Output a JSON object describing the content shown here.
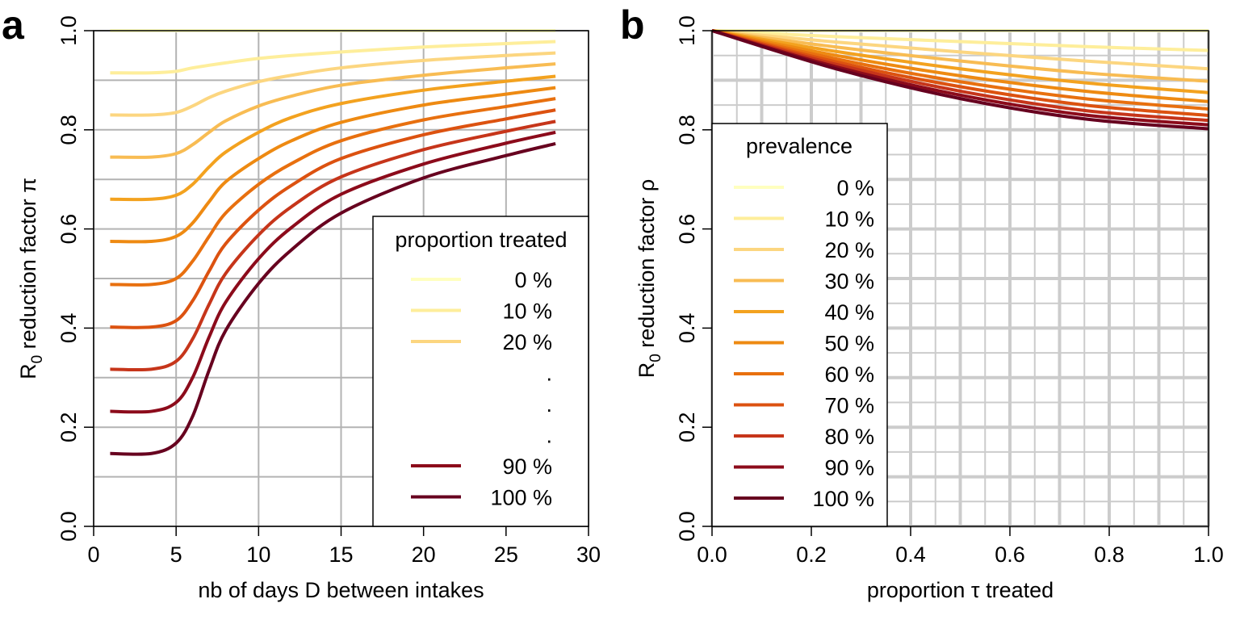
{
  "panels": {
    "a": {
      "letter": "a"
    },
    "b": {
      "letter": "b"
    }
  },
  "chart_data": [
    {
      "type": "line",
      "xlabel": "nb of days D between intakes",
      "ylabel_main": "R",
      "ylabel_sub": "0",
      "ylabel_rest": " reduction factor π",
      "xlim": [
        0,
        30
      ],
      "ylim": [
        0,
        1
      ],
      "xticks": [
        "0",
        "5",
        "10",
        "15",
        "20",
        "25",
        "30"
      ],
      "yticks": [
        "0.0",
        "0.2",
        "0.4",
        "0.6",
        "0.8",
        "1.0"
      ],
      "grid": true,
      "legend": {
        "title": "proportion treated",
        "placement": "bottom-right",
        "entries": [
          {
            "label": "0 %",
            "color": "#FFFFBF"
          },
          {
            "label": "10 %",
            "color": "#FEEE9B"
          },
          {
            "label": "20 %",
            "color": "#FCD680"
          },
          {
            "label": ".",
            "color": ""
          },
          {
            "label": ".",
            "color": ""
          },
          {
            "label": ".",
            "color": ""
          },
          {
            "label": "90 %",
            "color": "#8C0B1B"
          },
          {
            "label": "100 %",
            "color": "#67001F"
          }
        ]
      },
      "series": [
        {
          "color": "#FFFFBF",
          "x": [
            1,
            28
          ],
          "y": [
            1.0,
            1.0
          ]
        },
        {
          "color": "#FEEE9B",
          "x": [
            1,
            3.5,
            5,
            6,
            8,
            10,
            12,
            15,
            20,
            25,
            28
          ],
          "y": [
            0.915,
            0.915,
            0.918,
            0.925,
            0.935,
            0.944,
            0.95,
            0.957,
            0.967,
            0.974,
            0.978
          ]
        },
        {
          "color": "#FCD680",
          "x": [
            1,
            3.5,
            5,
            6,
            7,
            8,
            10,
            12,
            15,
            20,
            25,
            28
          ],
          "y": [
            0.83,
            0.83,
            0.835,
            0.848,
            0.865,
            0.878,
            0.897,
            0.91,
            0.925,
            0.94,
            0.95,
            0.955
          ]
        },
        {
          "color": "#F8BC53",
          "x": [
            1,
            3.5,
            5,
            6,
            7,
            8,
            10,
            12,
            15,
            20,
            25,
            28
          ],
          "y": [
            0.745,
            0.745,
            0.752,
            0.77,
            0.795,
            0.818,
            0.848,
            0.868,
            0.89,
            0.91,
            0.925,
            0.933
          ]
        },
        {
          "color": "#F3A21F",
          "x": [
            1,
            3.5,
            5,
            6,
            7,
            8,
            10,
            12,
            15,
            20,
            25,
            28
          ],
          "y": [
            0.66,
            0.66,
            0.668,
            0.69,
            0.725,
            0.755,
            0.795,
            0.825,
            0.853,
            0.88,
            0.898,
            0.908
          ]
        },
        {
          "color": "#EE8A12",
          "x": [
            1,
            3.5,
            5,
            6,
            7,
            8,
            10,
            12,
            15,
            20,
            25,
            28
          ],
          "y": [
            0.575,
            0.575,
            0.585,
            0.612,
            0.655,
            0.695,
            0.742,
            0.778,
            0.815,
            0.85,
            0.872,
            0.885
          ]
        },
        {
          "color": "#E8700F",
          "x": [
            1,
            3.5,
            5,
            6,
            7,
            8,
            10,
            12,
            15,
            20,
            25,
            28
          ],
          "y": [
            0.488,
            0.488,
            0.5,
            0.535,
            0.585,
            0.632,
            0.69,
            0.732,
            0.778,
            0.82,
            0.847,
            0.863
          ]
        },
        {
          "color": "#DC5210",
          "x": [
            1,
            3.5,
            5,
            6,
            7,
            8,
            10,
            12,
            15,
            20,
            25,
            28
          ],
          "y": [
            0.402,
            0.402,
            0.415,
            0.455,
            0.515,
            0.57,
            0.638,
            0.688,
            0.742,
            0.79,
            0.822,
            0.84
          ]
        },
        {
          "color": "#C6351A",
          "x": [
            1,
            3.5,
            5,
            6,
            7,
            8,
            10,
            12,
            15,
            20,
            25,
            28
          ],
          "y": [
            0.317,
            0.317,
            0.333,
            0.378,
            0.448,
            0.51,
            0.588,
            0.645,
            0.705,
            0.76,
            0.797,
            0.817
          ]
        },
        {
          "color": "#8C0B1B",
          "x": [
            1,
            3.5,
            5,
            6,
            7,
            8,
            10,
            12,
            15,
            20,
            25,
            28
          ],
          "y": [
            0.232,
            0.232,
            0.25,
            0.3,
            0.382,
            0.452,
            0.54,
            0.603,
            0.67,
            0.731,
            0.773,
            0.795
          ]
        },
        {
          "color": "#67001F",
          "x": [
            1,
            3.5,
            5,
            6,
            7,
            8,
            10,
            12,
            15,
            20,
            25,
            28
          ],
          "y": [
            0.147,
            0.147,
            0.168,
            0.222,
            0.315,
            0.395,
            0.49,
            0.558,
            0.632,
            0.703,
            0.748,
            0.772
          ]
        }
      ]
    },
    {
      "type": "line",
      "xlabel": "proportion τ treated",
      "ylabel_main": "R",
      "ylabel_sub": "0",
      "ylabel_rest": " reduction factor ρ",
      "xlim": [
        0,
        1
      ],
      "ylim": [
        0,
        1
      ],
      "xticks": [
        "0.0",
        "0.2",
        "0.4",
        "0.6",
        "0.8",
        "1.0"
      ],
      "yticks": [
        "0.0",
        "0.2",
        "0.4",
        "0.6",
        "0.8",
        "1.0"
      ],
      "grid": true,
      "legend": {
        "title": "prevalence",
        "placement": "left",
        "entries": [
          {
            "label": "0 %",
            "color": "#FFFFBF"
          },
          {
            "label": "10 %",
            "color": "#FEEE9B"
          },
          {
            "label": "20 %",
            "color": "#FCD680"
          },
          {
            "label": "30 %",
            "color": "#F8BC53"
          },
          {
            "label": "40 %",
            "color": "#F3A21F"
          },
          {
            "label": "50 %",
            "color": "#EE8A12"
          },
          {
            "label": "60 %",
            "color": "#E8700F"
          },
          {
            "label": "70 %",
            "color": "#DC5210"
          },
          {
            "label": "80 %",
            "color": "#C6351A"
          },
          {
            "label": "90 %",
            "color": "#8C0B1B"
          },
          {
            "label": "100 %",
            "color": "#67001F"
          }
        ]
      },
      "series": [
        {
          "color": "#FFFFBF",
          "x": [
            0,
            1
          ],
          "y": [
            1.0,
            1.0
          ]
        },
        {
          "color": "#FEEE9B",
          "x": [
            0,
            0.25,
            0.5,
            0.75,
            1.0
          ],
          "y": [
            1.0,
            0.988,
            0.978,
            0.968,
            0.96
          ]
        },
        {
          "color": "#FCD680",
          "x": [
            0,
            0.25,
            0.5,
            0.75,
            1.0
          ],
          "y": [
            1.0,
            0.977,
            0.957,
            0.939,
            0.923
          ]
        },
        {
          "color": "#F8BC53",
          "x": [
            0,
            0.25,
            0.5,
            0.75,
            1.0
          ],
          "y": [
            1.0,
            0.967,
            0.939,
            0.915,
            0.898
          ]
        },
        {
          "color": "#F3A21F",
          "x": [
            0,
            0.25,
            0.5,
            0.75,
            1.0
          ],
          "y": [
            1.0,
            0.958,
            0.923,
            0.895,
            0.875
          ]
        },
        {
          "color": "#EE8A12",
          "x": [
            0,
            0.25,
            0.5,
            0.75,
            1.0
          ],
          "y": [
            1.0,
            0.95,
            0.909,
            0.878,
            0.857
          ]
        },
        {
          "color": "#E8700F",
          "x": [
            0,
            0.25,
            0.5,
            0.75,
            1.0
          ],
          "y": [
            1.0,
            0.943,
            0.897,
            0.863,
            0.842
          ]
        },
        {
          "color": "#DC5210",
          "x": [
            0,
            0.25,
            0.5,
            0.75,
            1.0
          ],
          "y": [
            1.0,
            0.937,
            0.887,
            0.85,
            0.829
          ]
        },
        {
          "color": "#C6351A",
          "x": [
            0,
            0.25,
            0.5,
            0.75,
            1.0
          ],
          "y": [
            1.0,
            0.932,
            0.878,
            0.839,
            0.819
          ]
        },
        {
          "color": "#8C0B1B",
          "x": [
            0,
            0.25,
            0.5,
            0.75,
            1.0
          ],
          "y": [
            1.0,
            0.927,
            0.87,
            0.83,
            0.81
          ]
        },
        {
          "color": "#67001F",
          "x": [
            0,
            0.25,
            0.5,
            0.75,
            1.0
          ],
          "y": [
            1.0,
            0.923,
            0.863,
            0.822,
            0.802
          ]
        }
      ]
    }
  ]
}
